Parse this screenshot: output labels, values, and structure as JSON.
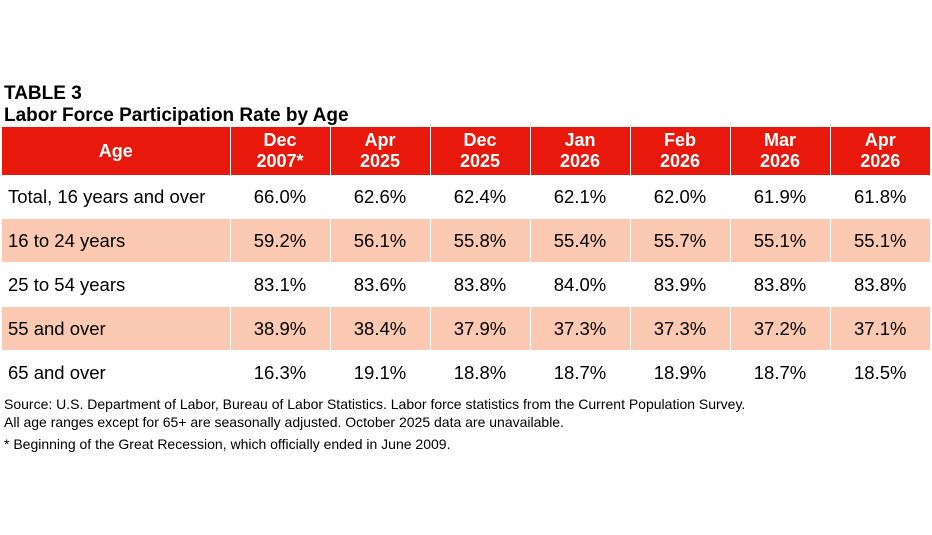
{
  "table": {
    "label": "TABLE 3",
    "title": "Labor Force Participation Rate by Age",
    "header": {
      "age": "Age",
      "columns": [
        {
          "line1": "Dec",
          "line2": "2007*"
        },
        {
          "line1": "Apr",
          "line2": "2025"
        },
        {
          "line1": "Dec",
          "line2": "2025"
        },
        {
          "line1": "Jan",
          "line2": "2026"
        },
        {
          "line1": "Feb",
          "line2": "2026"
        },
        {
          "line1": "Mar",
          "line2": "2026"
        },
        {
          "line1": "Apr",
          "line2": "2026"
        }
      ]
    },
    "rows": [
      {
        "age": "Total, 16 years and over",
        "values": [
          "66.0%",
          "62.6%",
          "62.4%",
          "62.1%",
          "62.0%",
          "61.9%",
          "61.8%"
        ]
      },
      {
        "age": "16 to 24 years",
        "values": [
          "59.2%",
          "56.1%",
          "55.8%",
          "55.4%",
          "55.7%",
          "55.1%",
          "55.1%"
        ]
      },
      {
        "age": "25 to 54 years",
        "values": [
          "83.1%",
          "83.6%",
          "83.8%",
          "84.0%",
          "83.9%",
          "83.8%",
          "83.8%"
        ]
      },
      {
        "age": "55 and over",
        "values": [
          "38.9%",
          "38.4%",
          "37.9%",
          "37.3%",
          "37.3%",
          "37.2%",
          "37.1%"
        ]
      },
      {
        "age": "65 and over",
        "values": [
          "16.3%",
          "19.1%",
          "18.8%",
          "18.7%",
          "18.9%",
          "18.7%",
          "18.5%"
        ]
      }
    ]
  },
  "footnotes": {
    "source_line1": "Source: U.S. Department of Labor, Bureau of Labor Statistics. Labor force statistics from the Current Population Survey.",
    "source_line2": "All age ranges except for 65+ are seasonally adjusted. October 2025 data are unavailable.",
    "asterisk_note": "* Beginning of the Great Recession, which officially ended in June 2009."
  },
  "colors": {
    "header_background": "#e8180c",
    "header_text": "#ffffff",
    "shaded_row": "#fbc9b2"
  }
}
